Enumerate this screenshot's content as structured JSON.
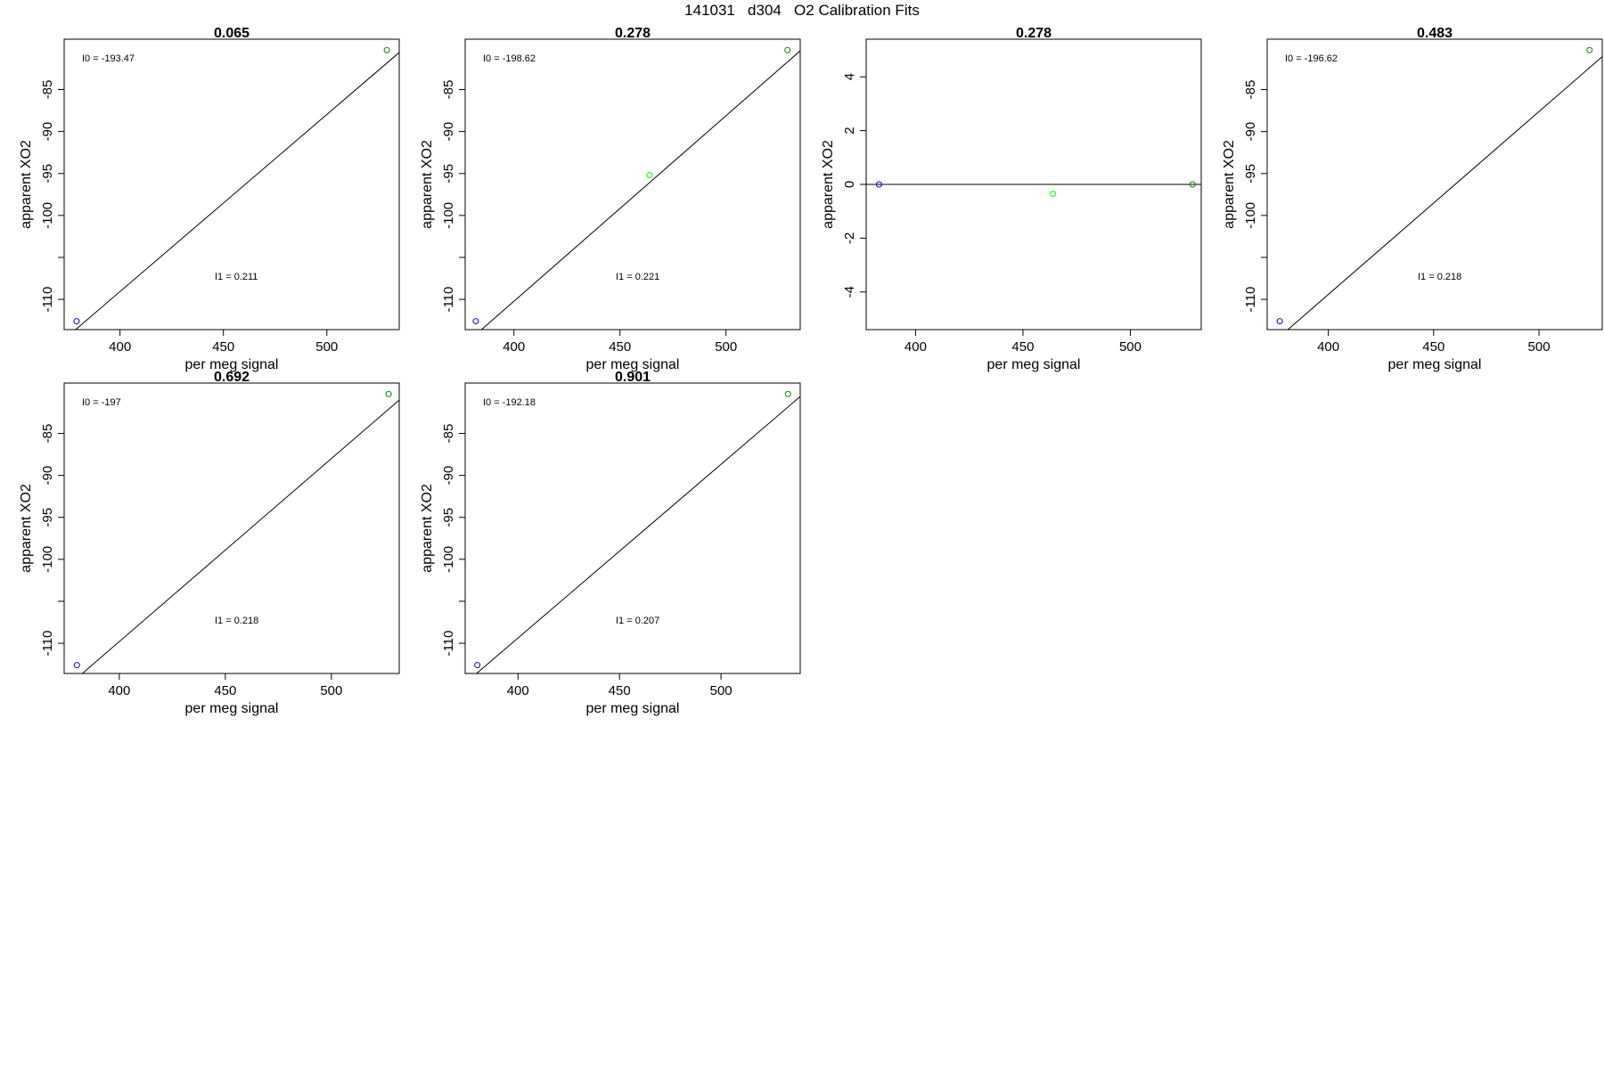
{
  "page": {
    "title": "141031   d304   O2 Calibration Fits"
  },
  "colors": {
    "axis": "#000000",
    "fit_line": "#000000",
    "point_low": "#0000cc",
    "point_mid": "#00ff00",
    "point_high": "#008800"
  },
  "chart_data": [
    {
      "type": "scatter",
      "title": "0.065",
      "xlabel": "per meg signal",
      "ylabel": "apparent XO2",
      "xlim": [
        373,
        535
      ],
      "ylim": [
        -113.6,
        -79.0
      ],
      "xticks": [
        400,
        450,
        500
      ],
      "yticks": [
        -110,
        -105,
        -100,
        -95,
        -90,
        -85
      ],
      "ytick_labels": [
        "-110",
        "",
        "-100",
        "-95",
        "-90",
        "-85"
      ],
      "points": [
        {
          "x": 379,
          "y": -112.6,
          "color": "#0000cc"
        },
        {
          "x": 529,
          "y": -80.3,
          "color": "#008800"
        }
      ],
      "fit_line": {
        "intercept": -193.47,
        "slope": 0.211
      },
      "annotations": {
        "i0": "I0 =  -193.47",
        "i1": "I1 =  0.211"
      }
    },
    {
      "type": "scatter",
      "title": "0.278",
      "xlabel": "per meg signal",
      "ylabel": "apparent XO2",
      "xlim": [
        377,
        535
      ],
      "ylim": [
        -113.6,
        -79.0
      ],
      "xticks": [
        400,
        450,
        500
      ],
      "yticks": [
        -110,
        -105,
        -100,
        -95,
        -90,
        -85
      ],
      "ytick_labels": [
        "-110",
        "",
        "-100",
        "-95",
        "-90",
        "-85"
      ],
      "points": [
        {
          "x": 382,
          "y": -112.6,
          "color": "#0000cc"
        },
        {
          "x": 464,
          "y": -95.2,
          "color": "#00ff00"
        },
        {
          "x": 529,
          "y": -80.3,
          "color": "#008800"
        }
      ],
      "fit_line": {
        "intercept": -198.62,
        "slope": 0.221
      },
      "annotations": {
        "i0": "I0 =  -198.62",
        "i1": "I1 =  0.221"
      }
    },
    {
      "type": "scatter",
      "title": "0.278",
      "xlabel": "per meg signal",
      "ylabel": "apparent XO2",
      "xlim": [
        377,
        533
      ],
      "ylim": [
        -5.4,
        5.4
      ],
      "xticks": [
        400,
        450,
        500
      ],
      "yticks": [
        -4,
        -2,
        0,
        2,
        4
      ],
      "ytick_labels": [
        "-4",
        "-2",
        "0",
        "2",
        "4"
      ],
      "points": [
        {
          "x": 383,
          "y": 0,
          "color": "#0000cc"
        },
        {
          "x": 464,
          "y": -0.35,
          "color": "#00ff00"
        },
        {
          "x": 529,
          "y": 0,
          "color": "#008800"
        }
      ],
      "fit_line": {
        "intercept": 0,
        "slope": 0
      },
      "annotations": {
        "i0": "",
        "i1": ""
      }
    },
    {
      "type": "scatter",
      "title": "0.483",
      "xlabel": "per meg signal",
      "ylabel": "apparent XO2",
      "xlim": [
        371,
        530
      ],
      "ylim": [
        -113.6,
        -79.0
      ],
      "xticks": [
        400,
        450,
        500
      ],
      "yticks": [
        -110,
        -105,
        -100,
        -95,
        -90,
        -85
      ],
      "ytick_labels": [
        "-110",
        "",
        "-100",
        "-95",
        "-90",
        "-85"
      ],
      "points": [
        {
          "x": 377,
          "y": -112.6,
          "color": "#0000cc"
        },
        {
          "x": 524,
          "y": -80.3,
          "color": "#008800"
        }
      ],
      "fit_line": {
        "intercept": -196.62,
        "slope": 0.218
      },
      "annotations": {
        "i0": "I0 =  -196.62",
        "i1": "I1 =  0.218"
      }
    },
    {
      "type": "scatter",
      "title": "0.692",
      "xlabel": "per meg signal",
      "ylabel": "apparent XO2",
      "xlim": [
        374,
        532
      ],
      "ylim": [
        -113.6,
        -79.0
      ],
      "xticks": [
        400,
        450,
        500
      ],
      "yticks": [
        -110,
        -105,
        -100,
        -95,
        -90,
        -85
      ],
      "ytick_labels": [
        "-110",
        "",
        "-100",
        "-95",
        "-90",
        "-85"
      ],
      "points": [
        {
          "x": 380,
          "y": -112.6,
          "color": "#0000cc"
        },
        {
          "x": 527,
          "y": -80.3,
          "color": "#008800"
        }
      ],
      "fit_line": {
        "intercept": -197,
        "slope": 0.218
      },
      "annotations": {
        "i0": "I0 =  -197",
        "i1": "I1 =  0.218"
      }
    },
    {
      "type": "scatter",
      "title": "0.901",
      "xlabel": "per meg signal",
      "ylabel": "apparent XO2",
      "xlim": [
        374,
        539
      ],
      "ylim": [
        -113.6,
        -79.0
      ],
      "xticks": [
        400,
        450,
        500
      ],
      "yticks": [
        -110,
        -105,
        -100,
        -95,
        -90,
        -85
      ],
      "ytick_labels": [
        "-110",
        "",
        "-100",
        "-95",
        "-90",
        "-85"
      ],
      "points": [
        {
          "x": 380,
          "y": -112.6,
          "color": "#0000cc"
        },
        {
          "x": 533,
          "y": -80.3,
          "color": "#008800"
        }
      ],
      "fit_line": {
        "intercept": -192.18,
        "slope": 0.207
      },
      "annotations": {
        "i0": "I0 =  -192.18",
        "i1": "I1 =  0.207"
      }
    }
  ]
}
